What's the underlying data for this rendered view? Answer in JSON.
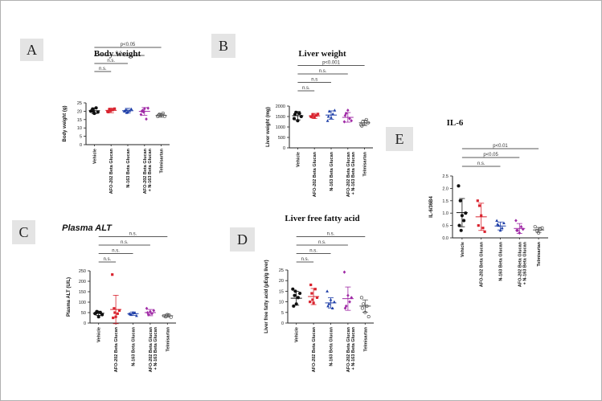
{
  "categories_long": [
    "Vehicle",
    "AFO-202 Beta Glucan",
    "N-163 Beta Glucan",
    "AFO-202 Beta Glucan",
    "Telmisartan"
  ],
  "category_line2": "+ N-163 Beta Glucan",
  "colors": {
    "c0": "#111111",
    "c1": "#d9232e",
    "c2": "#1f3fa8",
    "c3": "#a02aa6",
    "c4": "#555555"
  },
  "chart_data": [
    {
      "id": "A",
      "type": "scatter",
      "label": "A",
      "title": "Body weight",
      "title_style": "bold-serif",
      "ylabel": "Body weight (g)",
      "ylim": [
        0,
        25
      ],
      "yticks": [
        0,
        5,
        10,
        15,
        20,
        25
      ],
      "categories": [
        "Vehicle",
        "AFO-202 Beta Glucan",
        "N-163 Beta Glucan",
        "AFO-202 Beta Glucan + N-163 Beta Glucan",
        "Telmisartan"
      ],
      "means": [
        20.3,
        20.5,
        20.3,
        19.9,
        17.5
      ],
      "errors": [
        1.7,
        1.4,
        1.4,
        2.3,
        1.1
      ],
      "points": [
        [
          20,
          21.3,
          18.7,
          22,
          19.5,
          20.2,
          19.8
        ],
        [
          19.8,
          21,
          20.6,
          20.8,
          21.5,
          19.5,
          20.2
        ],
        [
          20,
          21,
          19.6,
          20.3,
          21.3,
          20.2,
          19.1
        ],
        [
          18,
          20.5,
          21.5,
          15.3,
          21.8,
          20,
          19.5
        ],
        [
          16.9,
          18.2,
          17.6,
          18.8,
          17,
          17.5
        ]
      ],
      "brackets": [
        {
          "label": "n.s.",
          "to": 1
        },
        {
          "label": "n.s.",
          "to": 2
        },
        {
          "label": "n.s.",
          "to": 3
        },
        {
          "label": "p<0.05",
          "to": 4
        }
      ]
    },
    {
      "id": "B",
      "type": "scatter",
      "label": "B",
      "title": "Liver weight",
      "title_style": "bold-serif",
      "ylabel": "Liver weight (mg)",
      "ylim": [
        0,
        2000
      ],
      "yticks": [
        0,
        500,
        1000,
        1500,
        2000
      ],
      "categories": [
        "Vehicle",
        "AFO-202 Beta Glucan",
        "N-163 Beta Glucan",
        "AFO-202 Beta Glucan + N-163 Beta Glucan",
        "Telmisartan"
      ],
      "means": [
        1540,
        1530,
        1570,
        1460,
        1200
      ],
      "errors": [
        200,
        120,
        200,
        230,
        130
      ],
      "points": [
        [
          1400,
          1700,
          1300,
          1650,
          1500,
          1600
        ],
        [
          1500,
          1600,
          1450,
          1550,
          1620,
          1480
        ],
        [
          1300,
          1750,
          1450,
          1620,
          1800,
          1500
        ],
        [
          1250,
          1650,
          1800,
          1400,
          1300,
          1550
        ],
        [
          1100,
          1250,
          1150,
          1350,
          1200,
          1050
        ]
      ],
      "brackets": [
        {
          "label": "n.s.",
          "to": 1
        },
        {
          "label": "n.s",
          "to": 2
        },
        {
          "label": "n.s.",
          "to": 3
        },
        {
          "label": "p<0.001",
          "to": 4
        }
      ]
    },
    {
      "id": "C",
      "type": "scatter",
      "label": "C",
      "title": "Plasma ALT",
      "title_style": "bold-italic-sans",
      "ylabel": "Plasma ALT (U/L)",
      "ylim": [
        0,
        250
      ],
      "yticks": [
        0,
        50,
        100,
        150,
        200,
        250
      ],
      "categories": [
        "Vehicle",
        "AFO-202 Beta Glucan",
        "N-163 Beta Glucan",
        "AFO-202 Beta Glucan + N-163 Beta Glucan",
        "Telmisartan"
      ],
      "means": [
        47,
        65,
        45,
        50,
        35
      ],
      "errors": [
        10,
        68,
        8,
        15,
        7
      ],
      "points": [
        [
          45,
          55,
          30,
          50,
          40,
          48,
          52
        ],
        [
          232,
          70,
          30,
          45,
          60,
          25,
          50
        ],
        [
          45,
          40,
          50,
          48,
          35,
          42
        ],
        [
          70,
          40,
          55,
          45,
          60,
          50
        ],
        [
          35,
          30,
          40,
          38,
          28
        ]
      ],
      "brackets": [
        {
          "label": "n.s.",
          "to": 1
        },
        {
          "label": "n.s.",
          "to": 2
        },
        {
          "label": "n.s.",
          "to": 3
        },
        {
          "label": "n.s.",
          "to": 4
        }
      ]
    },
    {
      "id": "D",
      "type": "scatter",
      "label": "D",
      "title": "Liver free fatty acid",
      "title_style": "bold-serif",
      "ylabel": "Liver free fatty acid (μEq/g liver)",
      "ylim": [
        0,
        25
      ],
      "yticks": [
        0,
        5,
        10,
        15,
        20,
        25
      ],
      "categories": [
        "Vehicle",
        "AFO-202 Beta Glucan",
        "N-163 Beta Glucan",
        "AFO-202 Beta Glucan + N-163 Beta Glucan",
        "Telmisartan"
      ],
      "means": [
        11.7,
        12.5,
        9.5,
        11.5,
        8
      ],
      "errors": [
        3.3,
        3.8,
        2.4,
        5.5,
        2.9
      ],
      "points": [
        [
          16,
          13,
          9,
          12,
          14,
          8,
          15
        ],
        [
          10,
          14,
          9.5,
          16,
          12,
          18,
          11
        ],
        [
          15,
          9,
          11,
          7,
          10,
          8
        ],
        [
          24,
          8,
          13,
          10,
          12,
          7
        ],
        [
          12,
          9,
          5,
          8,
          3,
          7
        ]
      ],
      "brackets": [
        {
          "label": "n.s.",
          "to": 1
        },
        {
          "label": "n.s.",
          "to": 2
        },
        {
          "label": "n.s.",
          "to": 3
        },
        {
          "label": "n.s.",
          "to": 4
        }
      ]
    },
    {
      "id": "E",
      "type": "scatter",
      "label": "E",
      "title": "IL-6",
      "title_style": "bold-serif",
      "ylabel": "IL-6/36B4",
      "ylim": [
        0,
        2.5
      ],
      "yticks": [
        0.0,
        0.5,
        1.0,
        1.5,
        2.0,
        2.5
      ],
      "categories": [
        "Vehicle",
        "AFO-202 Beta Glucan",
        "N-163 Beta Glucan",
        "AFO-202 Beta Glucan + N-163 Beta Glucan",
        "Telmisartan"
      ],
      "means": [
        1.02,
        0.85,
        0.48,
        0.38,
        0.32
      ],
      "errors": [
        0.57,
        0.55,
        0.16,
        0.2,
        0.1
      ],
      "points": [
        [
          2.1,
          1.5,
          0.9,
          0.7,
          1.0,
          0.5,
          0.3
        ],
        [
          1.5,
          1.3,
          0.9,
          0.4,
          0.25,
          0.5
        ],
        [
          0.7,
          0.5,
          0.3,
          0.4,
          0.6,
          0.55
        ],
        [
          0.7,
          0.3,
          0.2,
          0.45,
          0.35,
          0.3
        ],
        [
          0.45,
          0.3,
          0.2,
          0.35,
          0.4
        ]
      ],
      "brackets": [
        {
          "label": "n.s.",
          "to": 2
        },
        {
          "label": "p<0.05",
          "to": 3
        },
        {
          "label": "p<0.01",
          "to": 4
        }
      ]
    }
  ]
}
